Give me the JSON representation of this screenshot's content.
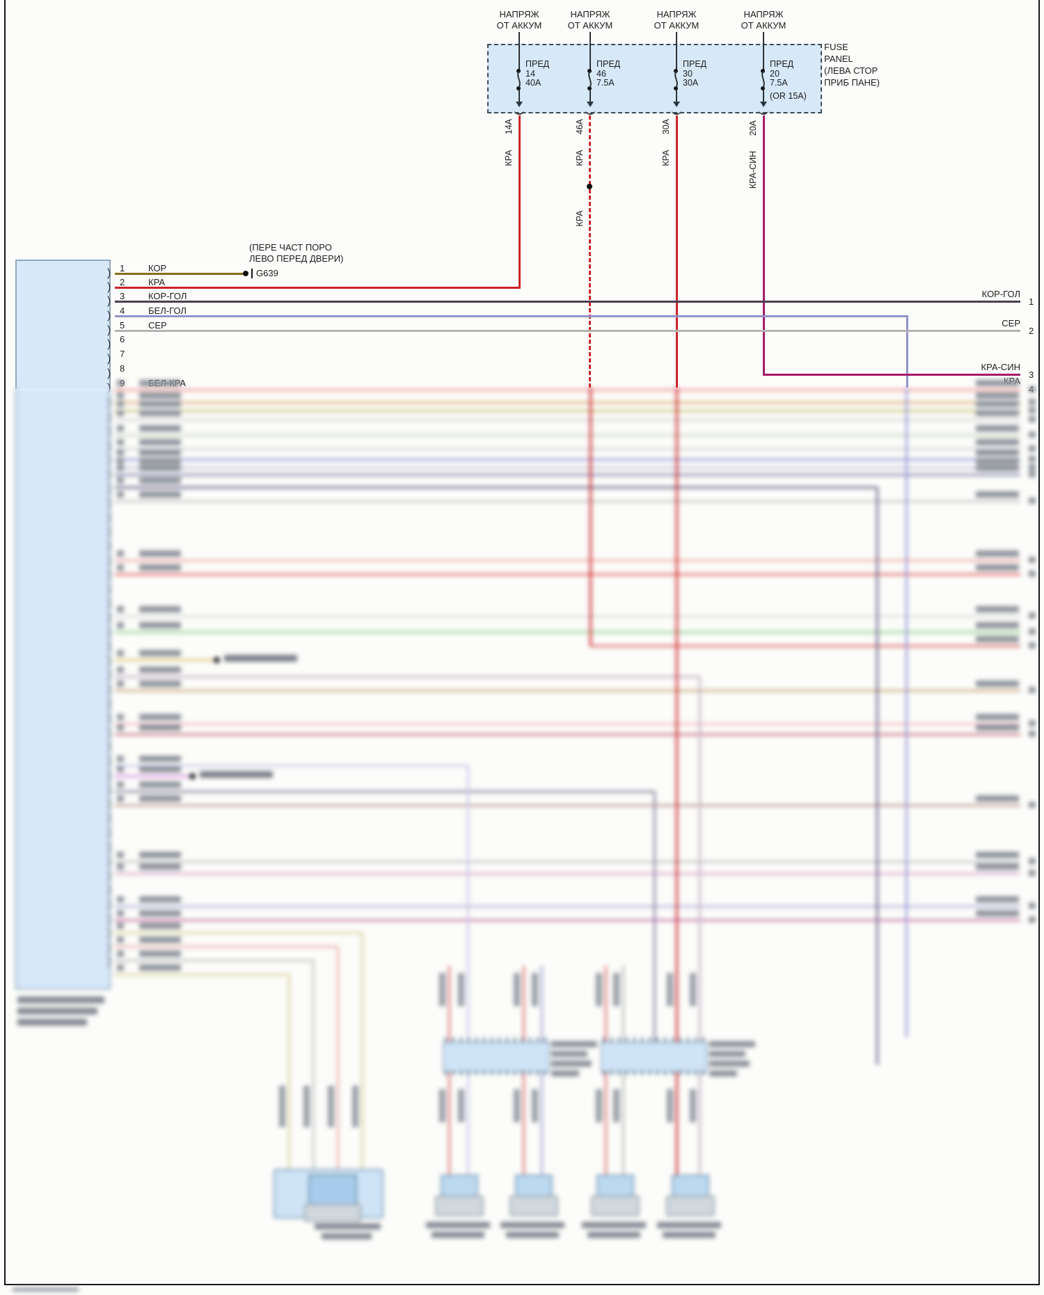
{
  "fuse_panel": {
    "name_lines": [
      "FUSE",
      "PANEL",
      "(ЛЕВА СТОР",
      "ПРИБ ПАНЕ)"
    ],
    "volt_line1": "НАПРЯЖ",
    "volt_line2": "ОТ АККУМ",
    "fuse_word": "ПРЕД",
    "fuses": [
      {
        "id": "14",
        "amps": "40A",
        "wire_amp": "14A",
        "wire": "КРА"
      },
      {
        "id": "46",
        "amps": "7.5A",
        "wire_amp": "46A",
        "wire": "КРА",
        "extra_wire": "КРА"
      },
      {
        "id": "30",
        "amps": "30A",
        "wire_amp": "30A",
        "wire": "КРА"
      },
      {
        "id": "20",
        "amps": "7.5A",
        "note": "(OR 15A)",
        "wire_amp": "20A",
        "wire": "КРА-СИН"
      }
    ]
  },
  "connector": {
    "pins": [
      {
        "n": "1",
        "label": "КОР"
      },
      {
        "n": "2",
        "label": "КРА"
      },
      {
        "n": "3",
        "label": "КОР-ГОЛ"
      },
      {
        "n": "4",
        "label": "БЕЛ-ГОЛ"
      },
      {
        "n": "5",
        "label": "СЕР"
      },
      {
        "n": "6",
        "label": ""
      },
      {
        "n": "7",
        "label": ""
      },
      {
        "n": "8",
        "label": ""
      },
      {
        "n": "9",
        "label": "БЕЛ-КРА"
      }
    ]
  },
  "ground": {
    "ref": "G639",
    "note_line1": "(ПЕРЕ ЧАСТ ПОРО",
    "note_line2": "ЛЕВО ПЕРЕД ДВЕРИ)"
  },
  "right_edge": [
    {
      "label": "КОР-ГОЛ",
      "n": "1"
    },
    {
      "label": "СЕР",
      "n": "2"
    },
    {
      "label": "КРА-СИН",
      "n": "3"
    },
    {
      "label": "КРА",
      "n": "4"
    }
  ],
  "palette": {
    "red_KRA": "#cc2327",
    "red_blue_KRA_SIN": "#a51a68",
    "brown_KOR": "#8a6d1a",
    "brown_blue_KOR_GOL": "#4a3d52",
    "white_blue_BEL_GOL": "#9393c9",
    "gray_SER": "#b3b3b3",
    "panel_fill": "#d7e9f9",
    "panel_border": "#8fa8c0"
  }
}
